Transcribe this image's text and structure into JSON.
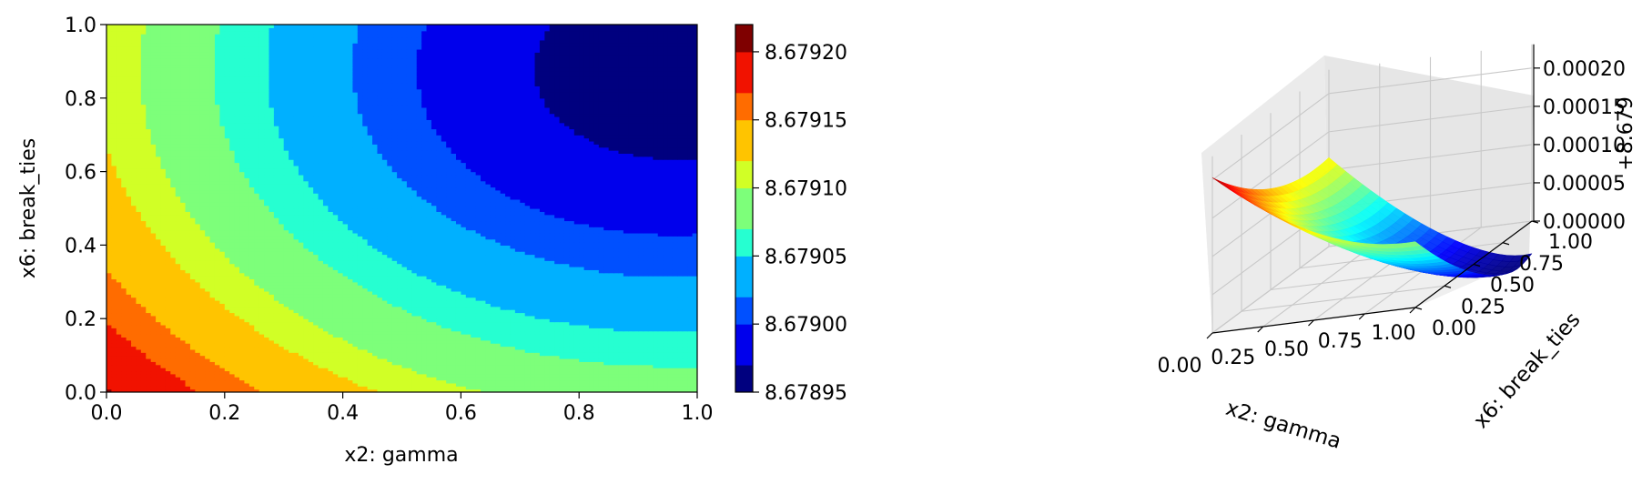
{
  "chart_data": [
    {
      "type": "contour",
      "xlabel": "x2: gamma",
      "ylabel": "x6: break_ties",
      "xlim": [
        0,
        1
      ],
      "ylim": [
        0,
        1
      ],
      "xticks": [
        "0.0",
        "0.2",
        "0.4",
        "0.6",
        "0.8",
        "1.0"
      ],
      "yticks": [
        "0.0",
        "0.2",
        "0.4",
        "0.6",
        "0.8",
        "1.0"
      ],
      "colormap": "jet",
      "levels": [
        8.67895,
        8.67897,
        8.679,
        8.67902,
        8.67905,
        8.67907,
        8.6791,
        8.67912,
        8.67915,
        8.67917,
        8.6792,
        8.67922
      ],
      "colors": [
        "#00007f",
        "#0000ec",
        "#0050ff",
        "#00b0ff",
        "#26ffd1",
        "#7dff7a",
        "#d1ff26",
        "#ffc400",
        "#ff6c00",
        "#f11200",
        "#7f0000"
      ],
      "approx_surface": {
        "min_at": [
          0.96,
          0.88
        ],
        "min_value": 8.67895,
        "max_at": [
          0.0,
          0.0
        ],
        "max_value": 8.67921
      },
      "colorbar": {
        "ticks": [
          "8.67895",
          "8.67900",
          "8.67905",
          "8.67910",
          "8.67915",
          "8.67920"
        ],
        "range": [
          8.67895,
          8.67922
        ]
      }
    },
    {
      "type": "surface3d",
      "xlabel": "x2: gamma",
      "ylabel": "x6: break_ties",
      "zlabel": "+8.679",
      "xticks": [
        "0.00",
        "0.25",
        "0.50",
        "0.75",
        "1.00"
      ],
      "yticks": [
        "0.00",
        "0.25",
        "0.50",
        "0.75",
        "1.00"
      ],
      "zticks": [
        "0.00000",
        "0.00005",
        "0.00010",
        "0.00015",
        "0.00020"
      ],
      "zlim": [
        0,
        0.00022
      ],
      "colormap": "jet"
    }
  ]
}
